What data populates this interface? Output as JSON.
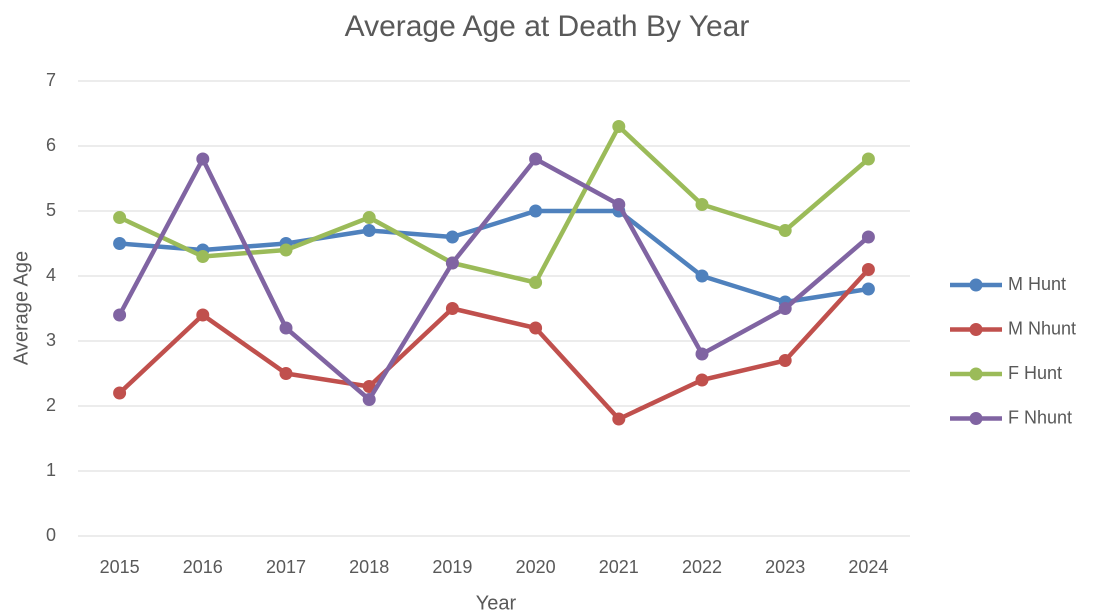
{
  "chart_data": {
    "type": "line",
    "title": "Average Age at Death By Year",
    "x_label": "Year",
    "y_label": "Average Age",
    "categories": [
      "2015",
      "2016",
      "2017",
      "2018",
      "2019",
      "2020",
      "2021",
      "2022",
      "2023",
      "2024"
    ],
    "series": [
      {
        "name": "M Hunt",
        "color": "#4f81bd",
        "values": [
          4.5,
          4.4,
          4.5,
          4.7,
          4.6,
          5.0,
          5.0,
          4.0,
          3.6,
          3.8
        ]
      },
      {
        "name": "M Nhunt",
        "color": "#c0504d",
        "values": [
          2.2,
          3.4,
          2.5,
          2.3,
          3.5,
          3.2,
          1.8,
          2.4,
          2.7,
          4.1
        ]
      },
      {
        "name": "F Hunt",
        "color": "#9bbb59",
        "values": [
          4.9,
          4.3,
          4.4,
          4.9,
          4.2,
          3.9,
          6.3,
          5.1,
          4.7,
          5.8
        ]
      },
      {
        "name": "F Nhunt",
        "color": "#8064a2",
        "values": [
          3.4,
          5.8,
          3.2,
          2.1,
          4.2,
          5.8,
          5.1,
          2.8,
          3.5,
          4.6
        ]
      }
    ],
    "ylim": [
      0,
      7
    ],
    "yticks": [
      0,
      1,
      2,
      3,
      4,
      5,
      6,
      7
    ],
    "grid": true,
    "legend": "right"
  }
}
